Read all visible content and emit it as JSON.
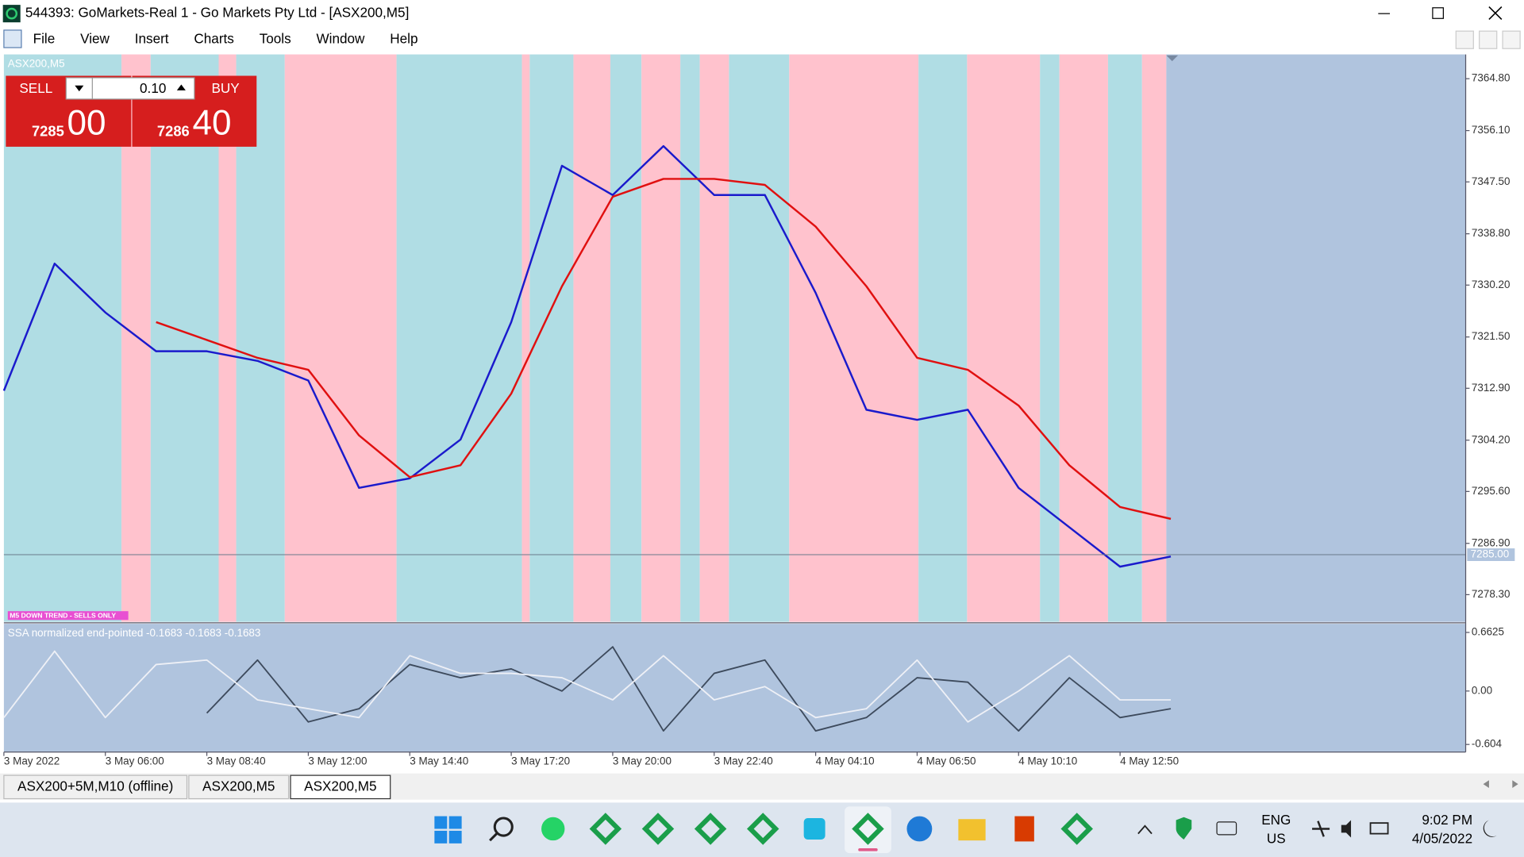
{
  "window": {
    "title": "544393: GoMarkets-Real 1 - Go Markets Pty Ltd - [ASX200,M5]"
  },
  "menu": [
    "File",
    "View",
    "Insert",
    "Charts",
    "Tools",
    "Window",
    "Help"
  ],
  "trade_panel": {
    "sell": "SELL",
    "lot": "0.10",
    "buy": "BUY",
    "bid_main": "7285",
    "bid_pips": "00",
    "ask_main": "7286",
    "ask_pips": "40"
  },
  "chart_data": [
    {
      "type": "line",
      "symbol_label": "ASX200,M5",
      "trend_label": "M5 DOWN TREND - SELLS ONLY",
      "categories": [
        "3 May 2022",
        null,
        "3 May 06:00",
        null,
        "3 May 08:40",
        null,
        "3 May 12:00",
        null,
        "3 May 14:40",
        null,
        "3 May 17:20",
        null,
        "3 May 20:00",
        null,
        "3 May 22:40",
        null,
        "4 May 04:10",
        null,
        "4 May 06:50",
        null,
        "4 May 10:10",
        null,
        "4 May 12:50",
        null
      ],
      "series": [
        {
          "color": "#1a1acc",
          "values": [
            7312.5,
            7333.8,
            7325.6,
            7319.1,
            7319.1,
            7317.5,
            7314.2,
            7296.2,
            7297.8,
            7304.3,
            7324.0,
            7350.2,
            7345.3,
            7353.5,
            7345.3,
            7345.3,
            7328.9,
            7309.3,
            7307.6,
            7309.3,
            7296.2,
            7289.6,
            7283.0,
            7284.7
          ]
        },
        {
          "color": "#e01010",
          "values": [
            null,
            null,
            null,
            7324,
            7321,
            7318,
            7316,
            7305,
            7298,
            7300,
            7312,
            7330,
            7345,
            7348,
            7348,
            7347,
            7340,
            7330,
            7318,
            7316,
            7310,
            7300,
            7293,
            7291
          ]
        }
      ],
      "ylim": [
        7273.74,
        7368.87
      ],
      "yticks": [
        {
          "value": 7364.8,
          "label": "7364.80"
        },
        {
          "value": 7356.1,
          "label": "7356.10"
        },
        {
          "value": 7347.5,
          "label": "7347.50"
        },
        {
          "value": 7338.8,
          "label": "7338.80"
        },
        {
          "value": 7330.2,
          "label": "7330.20"
        },
        {
          "value": 7321.5,
          "label": "7321.50"
        },
        {
          "value": 7312.9,
          "label": "7312.90"
        },
        {
          "value": 7304.2,
          "label": "7304.20"
        },
        {
          "value": 7295.6,
          "label": "7295.60"
        },
        {
          "value": 7286.9,
          "label": "7286.90"
        },
        {
          "value": 7278.3,
          "label": "7278.30"
        }
      ],
      "last_price": {
        "value": 7285,
        "label": "7285.00"
      }
    },
    {
      "type": "line",
      "title": "SSA normalized end-pointed -0.1683 -0.1683 -0.1683",
      "series": [
        {
          "color": "#3d4a5c",
          "values": [
            null,
            null,
            null,
            null,
            -0.25,
            0.35,
            -0.35,
            -0.2,
            0.3,
            0.15,
            0.25,
            0.0,
            0.5,
            -0.45,
            0.2,
            0.35,
            -0.45,
            -0.3,
            0.15,
            0.1,
            -0.45,
            0.15,
            -0.3,
            -0.2
          ]
        },
        {
          "color": "#eef0f6",
          "values": [
            -0.3,
            0.45,
            -0.3,
            0.3,
            0.35,
            -0.1,
            -0.2,
            -0.3,
            0.4,
            0.2,
            0.2,
            0.15,
            -0.1,
            0.4,
            -0.1,
            0.05,
            -0.3,
            -0.2,
            0.35,
            -0.35,
            0.0,
            0.4,
            -0.1,
            -0.1
          ]
        }
      ],
      "ylim": [
        -0.69,
        0.76
      ],
      "yticks": [
        {
          "value": 0.6625,
          "label": "0.6625"
        },
        {
          "value": 0,
          "label": "0.00"
        },
        -0.604
      ]
    }
  ],
  "tabs": [
    "ASX200+5M,M10 (offline)",
    "ASX200,M5",
    "ASX200,M5"
  ],
  "taskbar": {
    "lang": "ENG",
    "region": "US",
    "time": "9:02 PM",
    "date": "4/05/2022"
  }
}
